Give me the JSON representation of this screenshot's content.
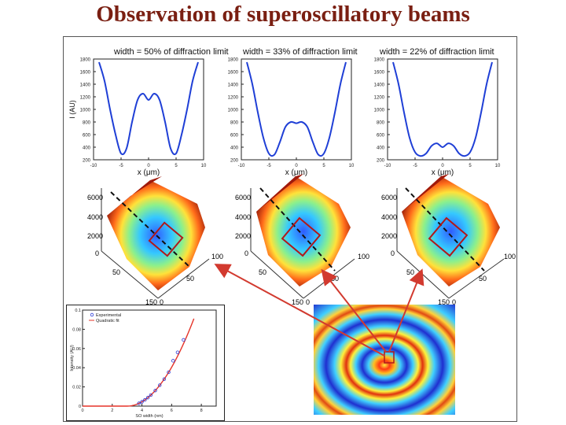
{
  "slide_title": "Observation of superoscillatory beams",
  "profile_plots": [
    {
      "title": "width = 50% of diffraction limit",
      "xlabel": "x (μm)",
      "ylabel": "I (AU)",
      "xticks": [
        "-10",
        "-5",
        "0",
        "5",
        "10"
      ],
      "yticks": [
        "1800",
        "1600",
        "1400",
        "1200",
        "1000",
        "800",
        "600",
        "400",
        "200"
      ],
      "x": [
        -9,
        -8,
        -7,
        -6,
        -5,
        -4,
        -3,
        -2,
        -1,
        0,
        1,
        2,
        3,
        4,
        5,
        6,
        7,
        8,
        9
      ],
      "y": [
        1750,
        1450,
        1000,
        600,
        300,
        380,
        800,
        1150,
        1250,
        1150,
        1250,
        1150,
        800,
        380,
        300,
        600,
        1000,
        1450,
        1750
      ]
    },
    {
      "title": "width = 33% of diffraction limit",
      "xlabel": "x (μm)",
      "ylabel": "",
      "xticks": [
        "-10",
        "-5",
        "0",
        "5",
        "10"
      ],
      "yticks": [
        "1800",
        "1600",
        "1400",
        "1200",
        "1000",
        "800",
        "600",
        "400",
        "200"
      ],
      "x": [
        -9,
        -8,
        -7,
        -6,
        -5,
        -4,
        -3,
        -2,
        -1,
        0,
        1,
        2,
        3,
        4,
        5,
        6,
        7,
        8,
        9
      ],
      "y": [
        1750,
        1400,
        950,
        550,
        300,
        280,
        480,
        720,
        800,
        780,
        800,
        720,
        480,
        280,
        300,
        550,
        950,
        1400,
        1750
      ]
    },
    {
      "title": "width = 22% of diffraction limit",
      "xlabel": "x (μm)",
      "ylabel": "",
      "xticks": [
        "-10",
        "-5",
        "0",
        "5",
        "10"
      ],
      "yticks": [
        "1800",
        "1600",
        "1400",
        "1200",
        "1000",
        "800",
        "600",
        "400",
        "200"
      ],
      "x": [
        -9,
        -8,
        -7,
        -6,
        -5,
        -4,
        -3,
        -2,
        -1,
        0,
        1,
        2,
        3,
        4,
        5,
        6,
        7,
        8,
        9
      ],
      "y": [
        1750,
        1400,
        950,
        550,
        320,
        260,
        300,
        420,
        460,
        400,
        460,
        420,
        300,
        260,
        320,
        550,
        950,
        1400,
        1750
      ]
    }
  ],
  "surface_labels": [
    {
      "z": [
        "6000",
        "4000",
        "2000",
        "0"
      ],
      "y": [
        "0",
        "50",
        "150"
      ],
      "x": [
        "0",
        "50",
        "100"
      ]
    },
    {
      "z": [
        "6000",
        "4000",
        "2000",
        "0"
      ],
      "y": [
        "0",
        "50",
        "150"
      ],
      "x": [
        "0",
        "50",
        "100"
      ]
    },
    {
      "z": [
        "6000",
        "4000",
        "2000",
        "0"
      ],
      "y": [
        "0",
        "50",
        "150"
      ],
      "x": [
        "0",
        "50",
        "100"
      ]
    }
  ],
  "scatter_plot": {
    "legend": [
      "Experimental",
      "Quadratic fit"
    ],
    "xlabel": "SO width (nm)",
    "ylabel": "Intensity (AU)",
    "xticks": [
      "0",
      "2",
      "4",
      "6",
      "8"
    ],
    "yticks": [
      "0.1",
      "0.08",
      "0.06",
      "0.04",
      "0.02",
      "0"
    ]
  },
  "colors": {
    "title": "#7a1f12",
    "line": "#1f3fd6",
    "arrow": "#d23a2f"
  }
}
